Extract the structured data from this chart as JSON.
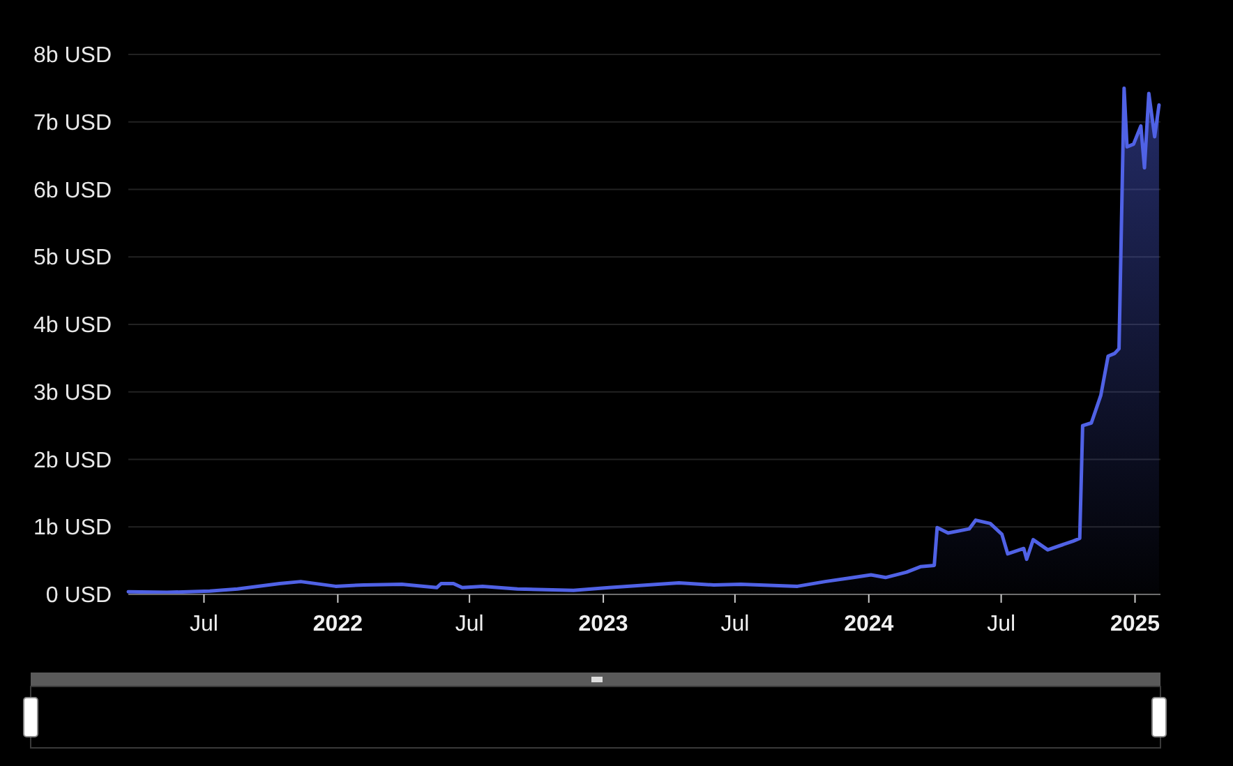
{
  "chart_data": {
    "type": "area",
    "x": [
      "2021-03-19",
      "2021-05-11",
      "2021-07-09",
      "2021-08-16",
      "2021-10-13",
      "2021-11-11",
      "2021-12-29",
      "2022-02-06",
      "2022-03-30",
      "2022-05-17",
      "2022-05-23",
      "2022-06-09",
      "2022-06-21",
      "2022-07-19",
      "2022-09-05",
      "2022-11-21",
      "2023-01-09",
      "2023-03-17",
      "2023-04-15",
      "2023-06-02",
      "2023-07-09",
      "2023-09-25",
      "2023-11-02",
      "2023-12-11",
      "2024-01-04",
      "2024-01-24",
      "2024-02-22",
      "2024-03-12",
      "2024-03-31",
      "2024-04-04",
      "2024-04-19",
      "2024-05-18",
      "2024-05-27",
      "2024-06-16",
      "2024-07-02",
      "2024-07-10",
      "2024-08-01",
      "2024-08-05",
      "2024-08-14",
      "2024-09-03",
      "2024-10-08",
      "2024-10-17",
      "2024-10-21",
      "2024-11-02",
      "2024-11-15",
      "2024-11-25",
      "2024-12-04",
      "2024-12-10",
      "2024-12-17",
      "2024-12-21",
      "2024-12-30",
      "2025-01-09",
      "2025-01-14",
      "2025-01-20",
      "2025-01-28",
      "2025-02-03"
    ],
    "series": [
      {
        "color": "#5062e6",
        "values": [
          0.04,
          0.03,
          0.05,
          0.08,
          0.16,
          0.19,
          0.12,
          0.14,
          0.15,
          0.1,
          0.16,
          0.16,
          0.1,
          0.12,
          0.08,
          0.06,
          0.1,
          0.15,
          0.17,
          0.14,
          0.15,
          0.12,
          0.19,
          0.25,
          0.29,
          0.25,
          0.33,
          0.41,
          0.43,
          0.99,
          0.91,
          0.97,
          1.1,
          1.05,
          0.89,
          0.6,
          0.68,
          0.52,
          0.81,
          0.66,
          0.79,
          0.83,
          2.5,
          2.54,
          2.95,
          3.53,
          3.57,
          3.64,
          7.5,
          6.63,
          6.67,
          6.94,
          6.32,
          7.42,
          6.78,
          7.25
        ]
      }
    ],
    "xlim": [
      "2021-03-19",
      "2025-02-05"
    ],
    "xticks": [
      {
        "value": "2021-07-01",
        "label": "Jul"
      },
      {
        "value": "2022-01-01",
        "label": "2022"
      },
      {
        "value": "2022-07-01",
        "label": "Jul"
      },
      {
        "value": "2023-01-01",
        "label": "2023"
      },
      {
        "value": "2023-07-01",
        "label": "Jul"
      },
      {
        "value": "2024-01-01",
        "label": "2024"
      },
      {
        "value": "2024-07-01",
        "label": "Jul"
      },
      {
        "value": "2025-01-01",
        "label": "2025"
      }
    ],
    "ylim": [
      0,
      8
    ],
    "yticks": [
      {
        "value": 0,
        "label": "0 USD"
      },
      {
        "value": 1,
        "label": "1b USD"
      },
      {
        "value": 2,
        "label": "2b USD"
      },
      {
        "value": 3,
        "label": "3b USD"
      },
      {
        "value": 4,
        "label": "4b USD"
      },
      {
        "value": 5,
        "label": "5b USD"
      },
      {
        "value": 6,
        "label": "6b USD"
      },
      {
        "value": 7,
        "label": "7b USD"
      },
      {
        "value": 8,
        "label": "8b USD"
      }
    ],
    "grid": "y"
  }
}
